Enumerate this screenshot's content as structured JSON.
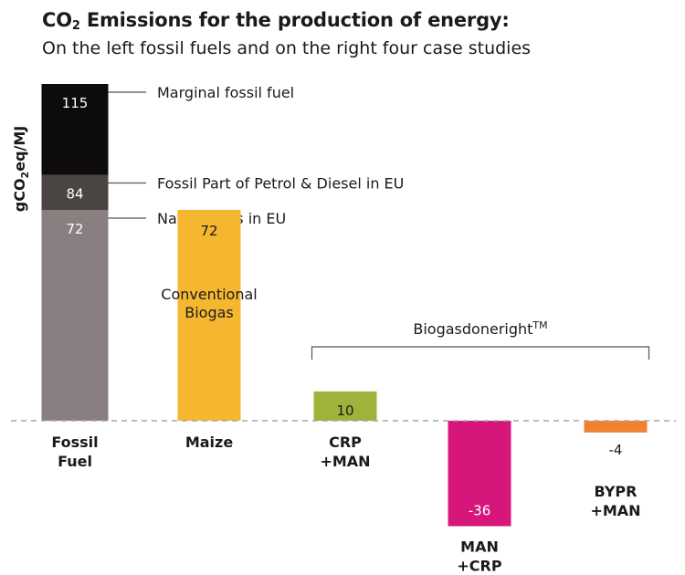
{
  "title": {
    "prefix": "CO",
    "subscript": "2",
    "suffix": " Emissions for the production of energy:"
  },
  "subtitle": "On the left fossil fuels and on the right four case studies",
  "colors": {
    "fossil_marginal": "#0d0b0b",
    "fossil_petrol": "#4a4443",
    "fossil_gas": "#8a7f80",
    "maize": "#f6b730",
    "crp_man": "#9db33a",
    "man_crp": "#d6167a",
    "bypr_man": "#f08130",
    "baseline": "#a7a7a7",
    "text": "#1a1a1a"
  },
  "chart_data": {
    "type": "bar",
    "ylabel_parts": [
      "gCO",
      "2",
      "eq/MJ"
    ],
    "ylim": [
      -40,
      115
    ],
    "grid": false,
    "baseline": 0,
    "fossil_stack": [
      {
        "value": 115,
        "label": "115",
        "legend": "Marginal fossil fuel",
        "color_key": "fossil_marginal"
      },
      {
        "value": 84,
        "label": "84",
        "legend": "Fossil Part of Petrol & Diesel in EU",
        "color_key": "fossil_petrol"
      },
      {
        "value": 72,
        "label": "72",
        "legend": "Natural Gas in EU",
        "color_key": "fossil_gas"
      }
    ],
    "categories": [
      {
        "label_lines": [
          "Fossil",
          "Fuel"
        ]
      },
      {
        "label_lines": [
          "Maize"
        ],
        "value": 72,
        "value_label": "72",
        "color_key": "maize",
        "title_lines": [
          "Conventional",
          "Biogas"
        ]
      },
      {
        "label_lines": [
          "CRP",
          "+MAN"
        ],
        "value": 10,
        "value_label": "10",
        "color_key": "crp_man"
      },
      {
        "label_lines": [
          "MAN",
          "+CRP"
        ],
        "value": -36,
        "value_label": "-36",
        "color_key": "man_crp"
      },
      {
        "label_lines": [
          "BYPR",
          "+MAN"
        ],
        "value": -4,
        "value_label": "-4",
        "color_key": "bypr_man"
      }
    ],
    "group_bracket": {
      "label": "Biogasdoneright",
      "superscript": "TM"
    }
  }
}
